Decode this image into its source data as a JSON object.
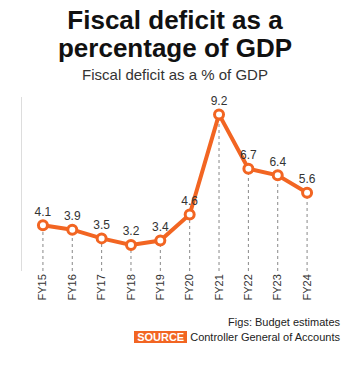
{
  "chart_data": {
    "type": "line",
    "title": "Fiscal deficit as a percentage of GDP",
    "subtitle": "Fiscal deficit as a % of GDP",
    "categories": [
      "FY15",
      "FY16",
      "FY17",
      "FY18",
      "FY19",
      "FY20",
      "FY21",
      "FY22",
      "FY23",
      "FY24"
    ],
    "values": [
      4.1,
      3.9,
      3.5,
      3.2,
      3.4,
      4.6,
      9.2,
      6.7,
      6.4,
      5.6
    ],
    "color": "#f26522",
    "marker": "circle",
    "ylim": [
      2,
      10
    ],
    "grid": false,
    "data_labels": true,
    "tick_labels": "x",
    "note": "Figs: Budget estimates",
    "source_label": "SOURCE",
    "source": "Controller General of Accounts"
  }
}
